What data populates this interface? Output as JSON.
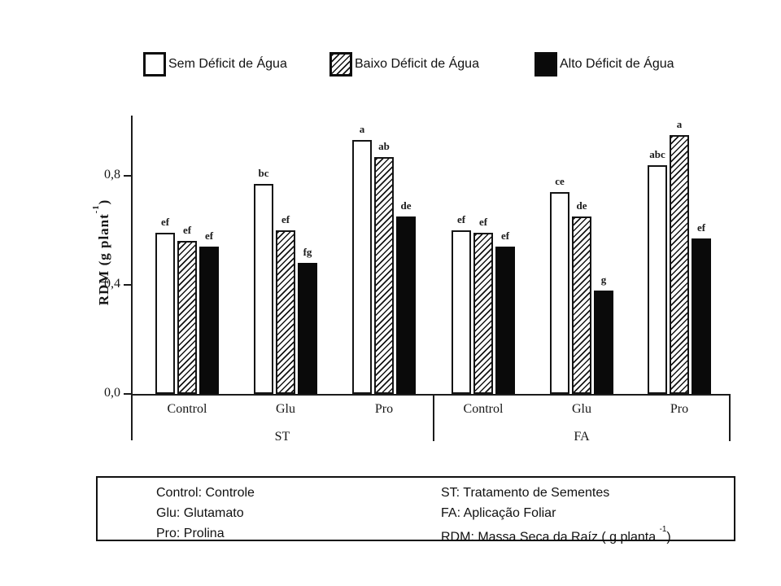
{
  "legend": {
    "items": [
      {
        "label": "Sem Déficit de Água",
        "swatch": "white"
      },
      {
        "label": "Baixo Déficit de Água",
        "swatch": "hatched"
      },
      {
        "label": "Alto Déficit de Água",
        "swatch": "black"
      }
    ]
  },
  "chart_data": {
    "type": "bar",
    "title": "",
    "xlabel": "",
    "ylabel": {
      "prefix": "RDM (g plant",
      "sup": "-1",
      "suffix": ")"
    },
    "ylim": [
      0,
      1.03
    ],
    "grid": false,
    "legend_position": "top",
    "decimal_style": "comma",
    "yticks": [
      {
        "label": "0,0",
        "value": 0.0
      },
      {
        "label": "0,4",
        "value": 0.4
      },
      {
        "label": "0,8",
        "value": 0.8
      }
    ],
    "series_names": [
      "Sem Déficit de Água",
      "Baixo Déficit de Água",
      "Alto Déficit de Água"
    ],
    "series_fills": [
      "white",
      "hatched",
      "black"
    ],
    "panels": [
      {
        "label": "ST"
      },
      {
        "label": "FA"
      }
    ],
    "groups": [
      {
        "panel": "ST",
        "category": "Control",
        "bars": [
          {
            "series": 0,
            "value": 0.59,
            "letter": "ef"
          },
          {
            "series": 1,
            "value": 0.56,
            "letter": "ef"
          },
          {
            "series": 2,
            "value": 0.54,
            "letter": "ef"
          }
        ]
      },
      {
        "panel": "ST",
        "category": "Glu",
        "bars": [
          {
            "series": 0,
            "value": 0.77,
            "letter": "bc"
          },
          {
            "series": 1,
            "value": 0.6,
            "letter": "ef"
          },
          {
            "series": 2,
            "value": 0.48,
            "letter": "fg"
          }
        ]
      },
      {
        "panel": "ST",
        "category": "Pro",
        "bars": [
          {
            "series": 0,
            "value": 0.93,
            "letter": "a"
          },
          {
            "series": 1,
            "value": 0.87,
            "letter": "ab"
          },
          {
            "series": 2,
            "value": 0.65,
            "letter": "de"
          }
        ]
      },
      {
        "panel": "FA",
        "category": "Control",
        "bars": [
          {
            "series": 0,
            "value": 0.6,
            "letter": "ef"
          },
          {
            "series": 1,
            "value": 0.59,
            "letter": "ef"
          },
          {
            "series": 2,
            "value": 0.54,
            "letter": "ef"
          }
        ]
      },
      {
        "panel": "FA",
        "category": "Glu",
        "bars": [
          {
            "series": 0,
            "value": 0.74,
            "letter": "ce"
          },
          {
            "series": 1,
            "value": 0.65,
            "letter": "de"
          },
          {
            "series": 2,
            "value": 0.38,
            "letter": "g"
          }
        ]
      },
      {
        "panel": "FA",
        "category": "Pro",
        "bars": [
          {
            "series": 0,
            "value": 0.84,
            "letter": "abc"
          },
          {
            "series": 1,
            "value": 0.95,
            "letter": "a"
          },
          {
            "series": 2,
            "value": 0.57,
            "letter": "ef"
          }
        ]
      }
    ]
  },
  "footnote": {
    "left_lines": [
      "Control: Controle",
      "Glu: Glutamato",
      "Pro: Prolina"
    ],
    "right_lines": [
      "ST: Tratamento de Sementes",
      "FA: Aplicação Foliar"
    ],
    "right_rdm": {
      "prefix": "RDM: Massa Seca da Raíz ( g planta ",
      "sup": "-1",
      "suffix": ")"
    }
  }
}
